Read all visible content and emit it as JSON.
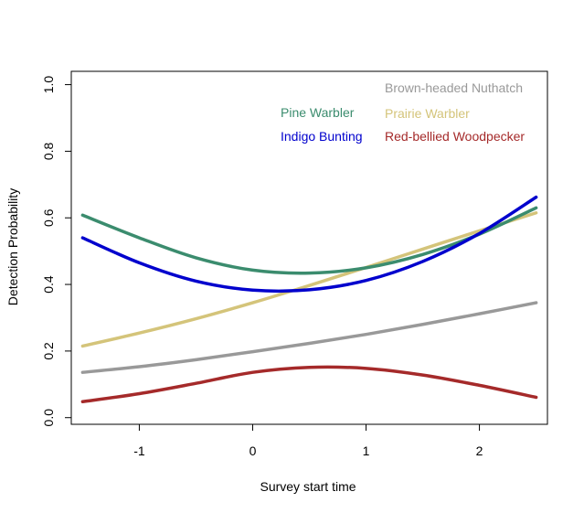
{
  "chart_data": {
    "type": "line",
    "title": "",
    "xlabel": "Survey start time",
    "ylabel": "Detection Probability",
    "xlim": [
      -1.6,
      2.6
    ],
    "ylim": [
      -0.02,
      1.04
    ],
    "xticks": [
      -1,
      0,
      1,
      2
    ],
    "xtick_labels": [
      "-1",
      "0",
      "1",
      "2"
    ],
    "yticks": [
      0.0,
      0.2,
      0.4,
      0.6,
      0.8,
      1.0
    ],
    "ytick_labels": [
      "0.0",
      "0.2",
      "0.4",
      "0.6",
      "0.8",
      "1.0"
    ],
    "grid": false,
    "legend_placement": "top-right",
    "series": [
      {
        "name": "Brown-headed Nuthatch",
        "color": "#999999",
        "x": [
          -1.5,
          -1.0,
          -0.5,
          0.0,
          0.5,
          1.0,
          1.5,
          2.0,
          2.5
        ],
        "values": [
          0.136,
          0.153,
          0.174,
          0.198,
          0.223,
          0.25,
          0.28,
          0.312,
          0.345
        ]
      },
      {
        "name": "Prairie Warbler",
        "color": "#d4c47a",
        "x": [
          -1.5,
          -1.0,
          -0.5,
          0.0,
          0.5,
          1.0,
          1.5,
          2.0,
          2.5
        ],
        "values": [
          0.215,
          0.254,
          0.297,
          0.345,
          0.397,
          0.451,
          0.506,
          0.561,
          0.615
        ]
      },
      {
        "name": "Pine Warbler",
        "color": "#3b8c6e",
        "x": [
          -1.5,
          -1.0,
          -0.5,
          0.0,
          0.5,
          1.0,
          1.5,
          2.0,
          2.5
        ],
        "values": [
          0.608,
          0.54,
          0.48,
          0.443,
          0.434,
          0.45,
          0.49,
          0.551,
          0.63
        ]
      },
      {
        "name": "Indigo Bunting",
        "color": "#0000cd",
        "x": [
          -1.5,
          -1.0,
          -0.5,
          0.0,
          0.5,
          1.0,
          1.5,
          2.0,
          2.5
        ],
        "values": [
          0.54,
          0.465,
          0.41,
          0.383,
          0.384,
          0.412,
          0.469,
          0.553,
          0.662
        ]
      },
      {
        "name": "Red-bellied Woodpecker",
        "color": "#a52a2a",
        "x": [
          -1.5,
          -1.0,
          -0.5,
          0.0,
          0.5,
          1.0,
          1.5,
          2.0,
          2.5
        ],
        "values": [
          0.048,
          0.072,
          0.103,
          0.136,
          0.151,
          0.148,
          0.128,
          0.097,
          0.061
        ]
      }
    ]
  }
}
